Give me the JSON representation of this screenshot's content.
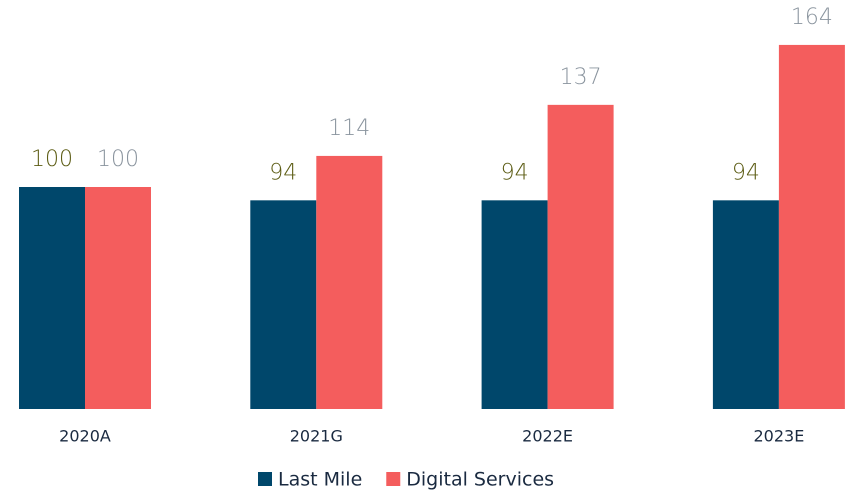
{
  "chart_data": {
    "type": "bar",
    "categories": [
      "2020A",
      "2021G",
      "2022E",
      "2023E"
    ],
    "series": [
      {
        "name": "Last Mile",
        "color": "#00476b",
        "label_color": "#5c5c14",
        "values": [
          100,
          94,
          94,
          94
        ]
      },
      {
        "name": "Digital Services",
        "color": "#f45d5d",
        "label_color": "#8a949e",
        "values": [
          100,
          114,
          137,
          164
        ]
      }
    ],
    "legend": "bottom"
  }
}
